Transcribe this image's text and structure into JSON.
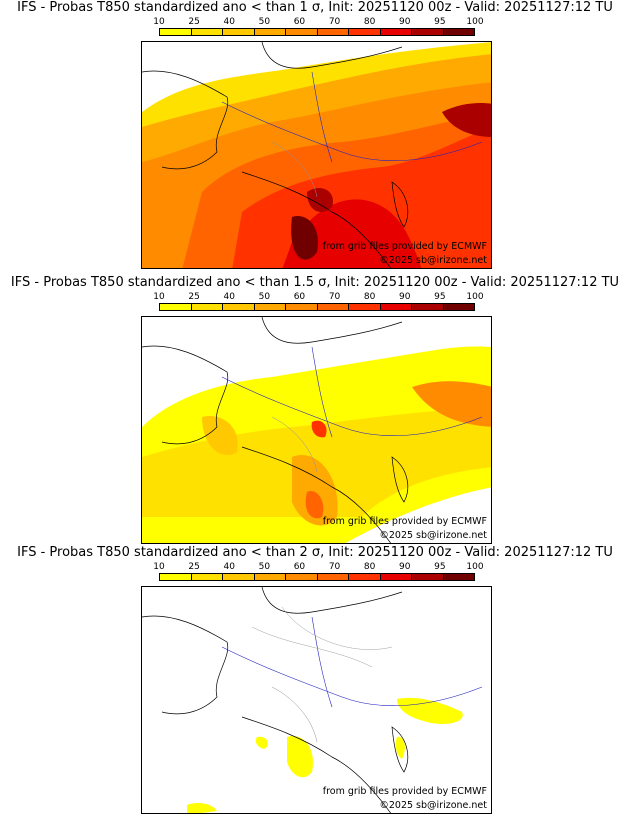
{
  "colorbar": {
    "labels": [
      "10",
      "25",
      "40",
      "50",
      "60",
      "70",
      "80",
      "90",
      "95",
      "100"
    ],
    "colors": [
      "#ffff00",
      "#ffe100",
      "#ffc800",
      "#ffaa00",
      "#ff8c00",
      "#ff6400",
      "#ff3200",
      "#e60000",
      "#aa0000",
      "#700000"
    ]
  },
  "credits": {
    "source": "from grib files provided by ECMWF",
    "copyright": "©2025 sb@irizone.net"
  },
  "panels": [
    {
      "title": "IFS - Probas T850  standardized ano < than 1 σ, Init: 20251120 00z - Valid: 20251127:12 TU",
      "level": "high"
    },
    {
      "title": "IFS - Probas T850  standardized ano < than 1.5 σ, Init: 20251120 00z - Valid: 20251127:12 TU",
      "level": "medium"
    },
    {
      "title": "IFS - Probas T850  standardized ano < than 2 σ, Init: 20251120 00z - Valid: 20251127:12 TU",
      "level": "low"
    }
  ]
}
